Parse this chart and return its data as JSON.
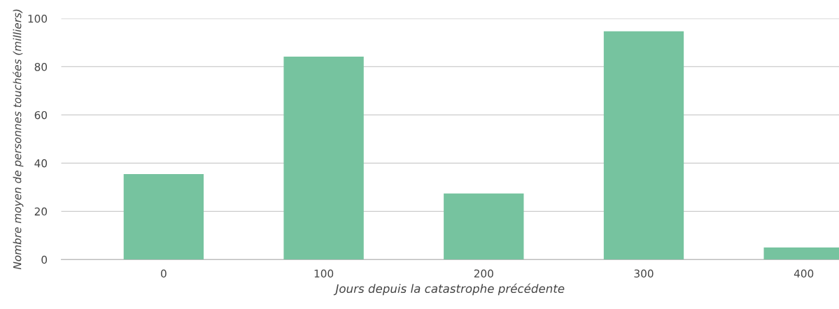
{
  "chart_data": {
    "type": "bar",
    "xlabel": "Jours depuis la catastrophe précédente",
    "ylabel": "Nombre moyen de personnes touchées (milliers)",
    "x": [
      0,
      100,
      200,
      300,
      400
    ],
    "values": [
      35.5,
      84.2,
      27.4,
      94.7,
      5.0
    ],
    "color": "#76c39f",
    "xlim": [
      -64,
      422
    ],
    "xticks": [
      0,
      100,
      200,
      300,
      400
    ],
    "ylim": [
      0,
      100
    ],
    "yticks": [
      0,
      20,
      40,
      60,
      80,
      100
    ],
    "grid": "y"
  }
}
